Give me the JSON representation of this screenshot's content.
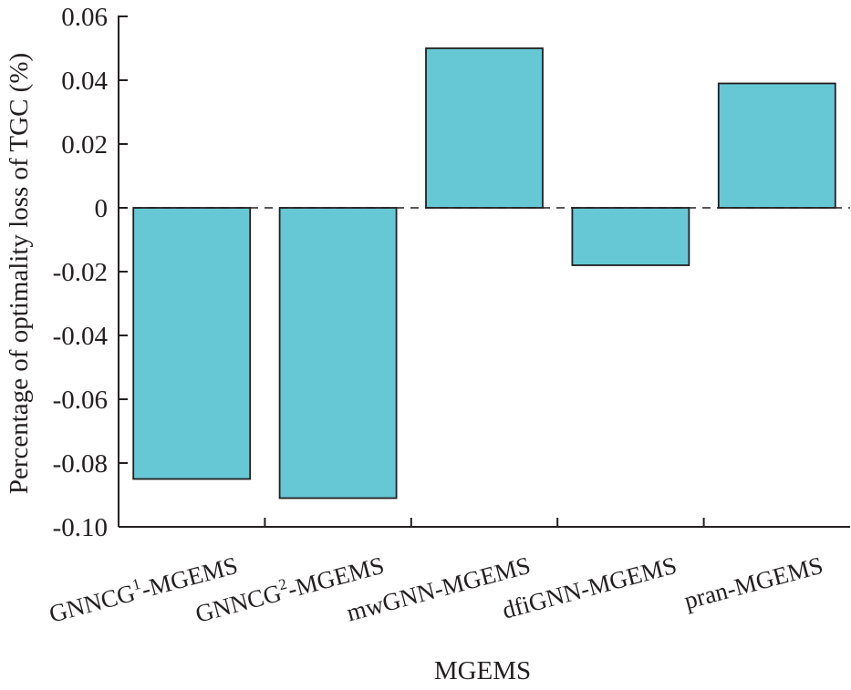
{
  "chart_data": {
    "type": "bar",
    "categories": [
      {
        "main": "GNNCG",
        "sup": "1",
        "tail": "-MGEMS"
      },
      {
        "main": "GNNCG",
        "sup": "2",
        "tail": "-MGEMS"
      },
      {
        "main": "mwGNN-MGEMS",
        "sup": "",
        "tail": ""
      },
      {
        "main": "dfiGNN-MGEMS",
        "sup": "",
        "tail": ""
      },
      {
        "main": "pran-MGEMS",
        "sup": "",
        "tail": ""
      }
    ],
    "values": [
      -0.085,
      -0.091,
      0.05,
      -0.018,
      0.039
    ],
    "xlabel": "MGEMS",
    "ylabel": "Percentage of optimality loss of TGC (%)",
    "ylim": [
      -0.1,
      0.06
    ],
    "yticks": [
      {
        "value": 0.06,
        "label": "0.06"
      },
      {
        "value": 0.04,
        "label": "0.04"
      },
      {
        "value": 0.02,
        "label": "0.02"
      },
      {
        "value": 0,
        "label": "0"
      },
      {
        "value": -0.02,
        "label": "-0.02"
      },
      {
        "value": -0.04,
        "label": "-0.04"
      },
      {
        "value": -0.06,
        "label": "-0.06"
      },
      {
        "value": -0.08,
        "label": "-0.08"
      },
      {
        "value": -0.1,
        "label": "-0.10"
      }
    ],
    "bar_color": "#66c8d4",
    "zero_reference_line": "dashed",
    "grid": false,
    "legend": "none"
  }
}
